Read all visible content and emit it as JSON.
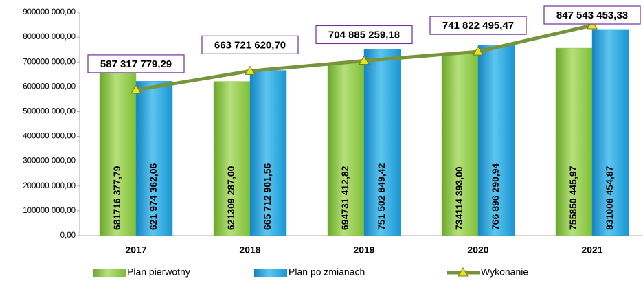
{
  "chart_data": {
    "type": "bar",
    "categories": [
      "2017",
      "2018",
      "2019",
      "2020",
      "2021"
    ],
    "series": [
      {
        "name": "Plan pierwotny",
        "color": "#8cc63f",
        "values": [
          681716377.79,
          621309287.0,
          694731412.82,
          734114393.0,
          755850445.97
        ],
        "value_labels": [
          "681716 377,79",
          "621309 287,00",
          "694731 412,82",
          "734114 393,00",
          "755850 445,97"
        ]
      },
      {
        "name": "Plan po zmianach",
        "color": "#1e9fd8",
        "values": [
          621974362.06,
          665712901.56,
          751502849.42,
          766896290.94,
          831008454.87
        ],
        "value_labels": [
          "621 974 362,06",
          "665 712 901,56",
          "751 502 849,42",
          "766 896 290,94",
          "831008 454,87"
        ]
      },
      {
        "name": "Wykonanie",
        "type": "line",
        "color": "#77933c",
        "marker_color": "#e6e61e",
        "values": [
          587317779.29,
          663721620.7,
          704885259.18,
          741822495.47,
          847543453.33
        ],
        "value_labels": [
          "587 317 779,29",
          "663 721 620,70",
          "704 885 259,18",
          "741 822 495,47",
          "847 543 453,33"
        ]
      }
    ],
    "ylim": [
      0,
      900000000
    ],
    "yticks": [
      {
        "value": 0,
        "label": "0,00"
      },
      {
        "value": 100000000,
        "label": "100000 000,00"
      },
      {
        "value": 200000000,
        "label": "200000 000,00"
      },
      {
        "value": 300000000,
        "label": "300000 000,00"
      },
      {
        "value": 400000000,
        "label": "400000 000,00"
      },
      {
        "value": 500000000,
        "label": "500000 000,00"
      },
      {
        "value": 600000000,
        "label": "600000 000,00"
      },
      {
        "value": 700000000,
        "label": "700000 000,00"
      },
      {
        "value": 800000000,
        "label": "800000 000,00"
      },
      {
        "value": 900000000,
        "label": "900000 000,00"
      }
    ],
    "grid": false
  }
}
